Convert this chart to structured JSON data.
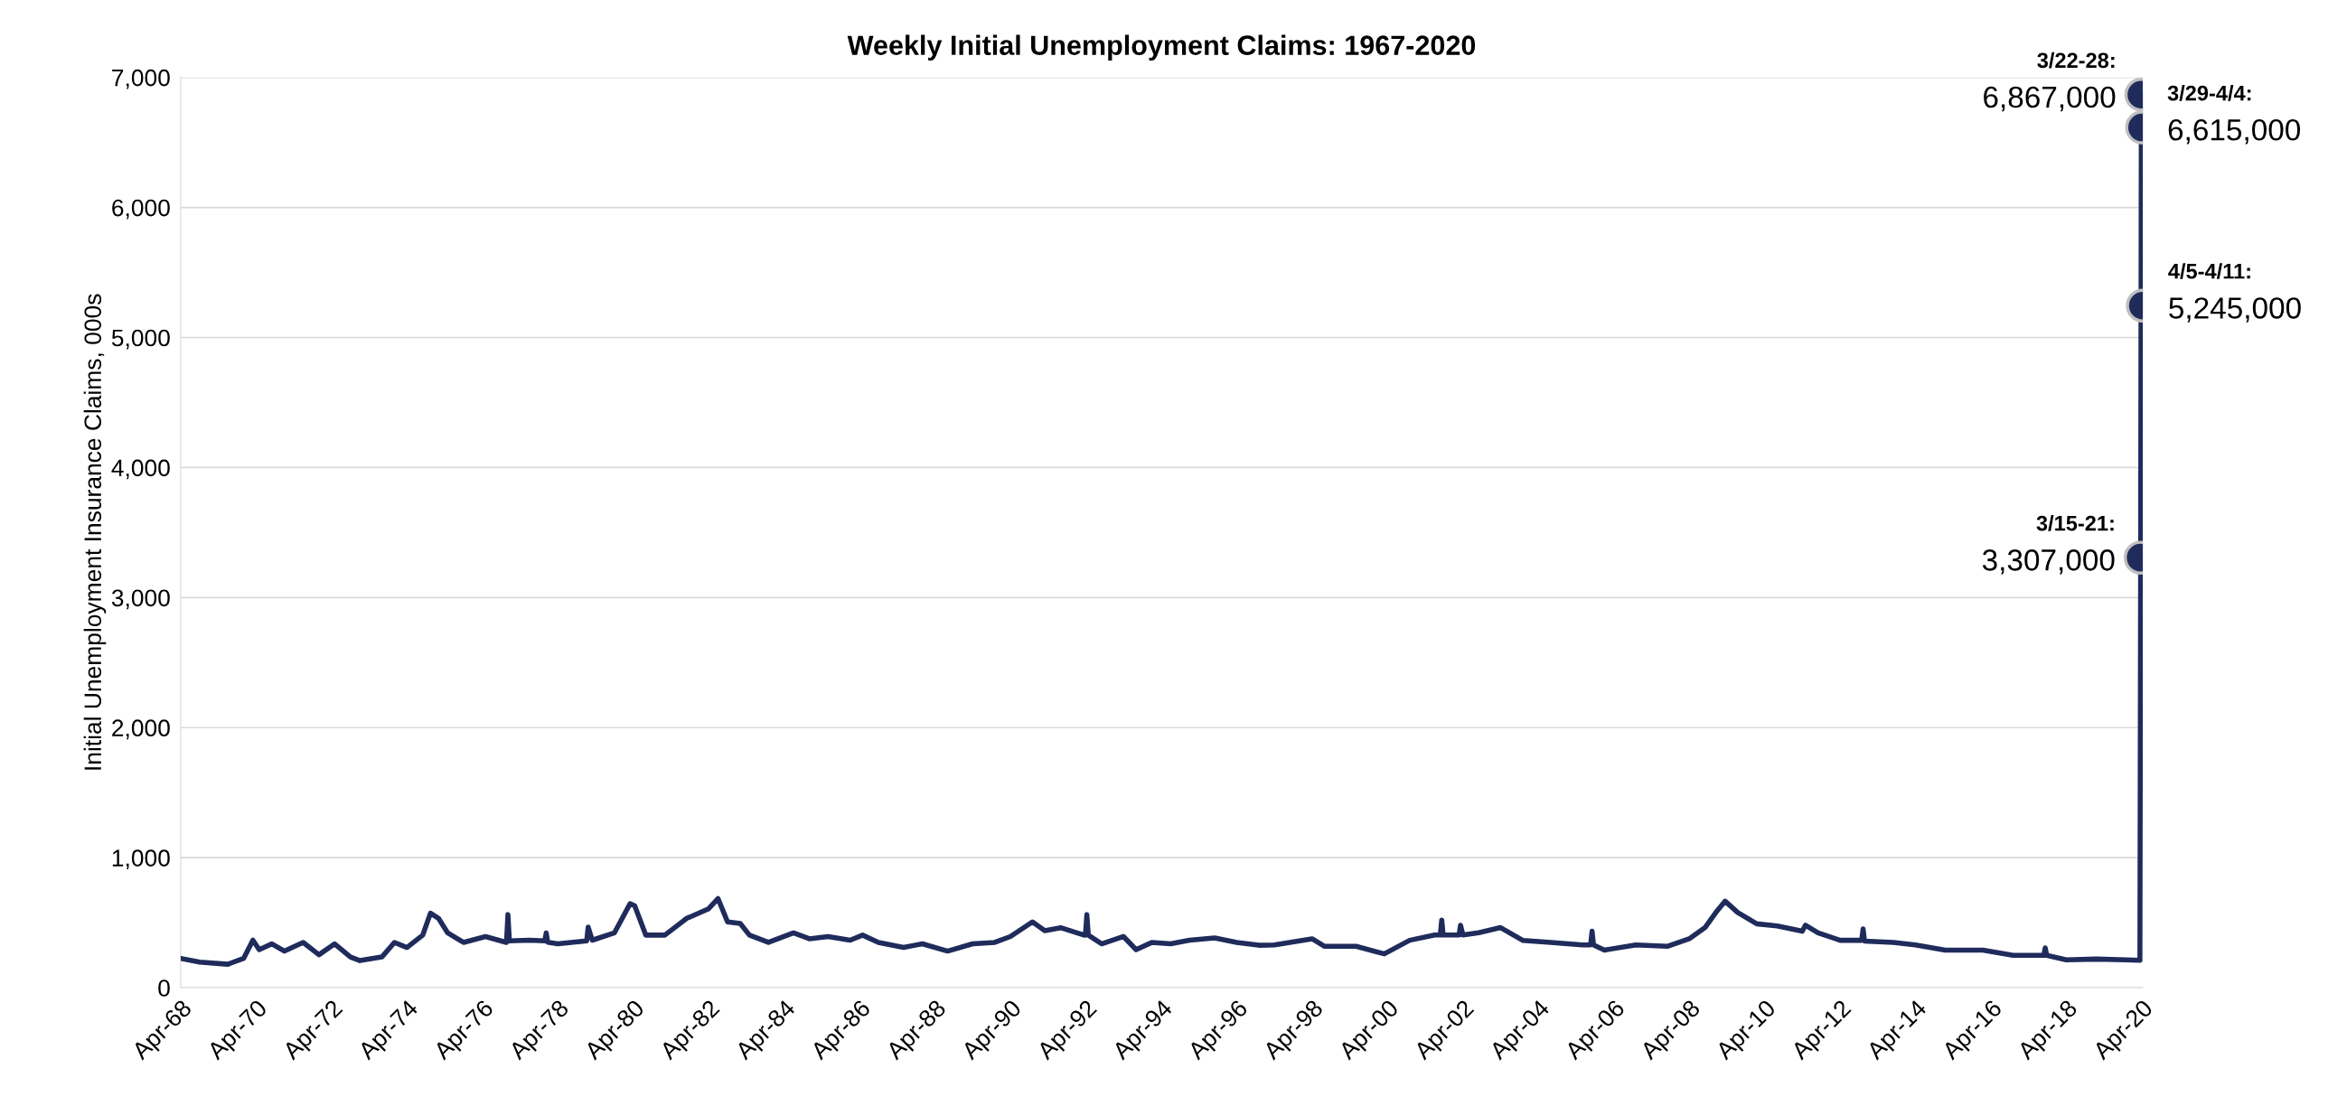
{
  "chart_data": {
    "type": "line",
    "title": "Weekly Initial Unemployment Claims: 1967-2020",
    "ylabel": "Initial Unemployment Insurance Claims, 000s",
    "ylim": [
      0,
      7000
    ],
    "yticks": [
      {
        "value": 0,
        "label": "0"
      },
      {
        "value": 1000,
        "label": "1,000"
      },
      {
        "value": 2000,
        "label": "2,000"
      },
      {
        "value": 3000,
        "label": "3,000"
      },
      {
        "value": 4000,
        "label": "4,000"
      },
      {
        "value": 5000,
        "label": "5,000"
      },
      {
        "value": 6000,
        "label": "6,000"
      },
      {
        "value": 7000,
        "label": "7,000"
      }
    ],
    "xlim": [
      "1968-04-01",
      "2020-04-11"
    ],
    "xticks": [
      {
        "value": "1968-04-01",
        "label": "Apr-68"
      },
      {
        "value": "1970-04-01",
        "label": "Apr-70"
      },
      {
        "value": "1972-04-01",
        "label": "Apr-72"
      },
      {
        "value": "1974-04-01",
        "label": "Apr-74"
      },
      {
        "value": "1976-04-01",
        "label": "Apr-76"
      },
      {
        "value": "1978-04-01",
        "label": "Apr-78"
      },
      {
        "value": "1980-04-01",
        "label": "Apr-80"
      },
      {
        "value": "1982-04-01",
        "label": "Apr-82"
      },
      {
        "value": "1984-04-01",
        "label": "Apr-84"
      },
      {
        "value": "1986-04-01",
        "label": "Apr-86"
      },
      {
        "value": "1988-04-01",
        "label": "Apr-88"
      },
      {
        "value": "1990-04-01",
        "label": "Apr-90"
      },
      {
        "value": "1992-04-01",
        "label": "Apr-92"
      },
      {
        "value": "1994-04-01",
        "label": "Apr-94"
      },
      {
        "value": "1996-04-01",
        "label": "Apr-96"
      },
      {
        "value": "1998-04-01",
        "label": "Apr-98"
      },
      {
        "value": "2000-04-01",
        "label": "Apr-00"
      },
      {
        "value": "2002-04-01",
        "label": "Apr-02"
      },
      {
        "value": "2004-04-01",
        "label": "Apr-04"
      },
      {
        "value": "2006-04-01",
        "label": "Apr-06"
      },
      {
        "value": "2008-04-01",
        "label": "Apr-08"
      },
      {
        "value": "2010-04-01",
        "label": "Apr-10"
      },
      {
        "value": "2012-04-01",
        "label": "Apr-12"
      },
      {
        "value": "2014-04-01",
        "label": "Apr-14"
      },
      {
        "value": "2016-04-01",
        "label": "Apr-16"
      },
      {
        "value": "2018-04-01",
        "label": "Apr-18"
      },
      {
        "value": "2020-04-01",
        "label": "Apr-20"
      }
    ],
    "grid": "y",
    "series": [
      {
        "color": "#1f2b5b",
        "x": [
          "1968-04-01",
          "1968-10-01",
          "1969-07-01",
          "1969-12-01",
          "1970-03-01",
          "1970-05-01",
          "1970-09-01",
          "1971-01-01",
          "1971-07-01",
          "1971-12-01",
          "1972-05-01",
          "1972-10-01",
          "1973-01-01",
          "1973-08-01",
          "1973-12-01",
          "1974-04-01",
          "1974-09-01",
          "1974-11-15",
          "1975-02-01",
          "1975-05-01",
          "1975-10-01",
          "1976-05-01",
          "1976-11-20",
          "1976-12-04",
          "1976-12-18",
          "1977-07-01",
          "1977-11-26",
          "1977-12-10",
          "1977-12-24",
          "1978-04-01",
          "1979-01-06",
          "1979-01-20",
          "1979-03-01",
          "1979-10-01",
          "1980-03-01",
          "1980-04-15",
          "1980-08-01",
          "1981-02-01",
          "1981-09-01",
          "1982-04-01",
          "1982-07-01",
          "1982-10-01",
          "1983-02-01",
          "1983-05-01",
          "1983-11-01",
          "1984-07-01",
          "1984-12-01",
          "1985-06-01",
          "1986-01-01",
          "1986-05-01",
          "1986-10-01",
          "1987-06-01",
          "1987-12-01",
          "1988-08-01",
          "1989-04-01",
          "1989-11-01",
          "1990-04-01",
          "1990-11-01",
          "1991-03-01",
          "1991-08-01",
          "1992-03-15",
          "1992-03-28",
          "1992-04-11",
          "1992-04-25",
          "1992-09-01",
          "1993-04-01",
          "1993-08-01",
          "1994-01-01",
          "1994-07-01",
          "1995-01-01",
          "1995-09-01",
          "1996-04-01",
          "1996-11-01",
          "1997-04-01",
          "1998-04-01",
          "1998-08-01",
          "1999-06-01",
          "2000-03-01",
          "2000-11-01",
          "2001-07-01",
          "2001-08-25",
          "2001-09-08",
          "2001-09-22",
          "2002-02-23",
          "2002-03-09",
          "2002-04-01",
          "2002-09-01",
          "2003-04-01",
          "2003-11-01",
          "2004-08-01",
          "2005-06-01",
          "2005-08-20",
          "2005-09-03",
          "2005-09-17",
          "2006-01-01",
          "2006-11-01",
          "2007-09-01",
          "2008-04-01",
          "2008-09-01",
          "2008-12-15",
          "2009-03-15",
          "2009-07-15",
          "2010-01-15",
          "2010-08-01",
          "2011-04-01",
          "2011-05-01",
          "2011-09-01",
          "2012-04-01",
          "2012-10-27",
          "2012-11-10",
          "2012-11-24",
          "2013-09-01",
          "2014-04-01",
          "2015-01-15",
          "2016-01-15",
          "2016-11-01",
          "2017-08-26",
          "2017-09-09",
          "2017-09-23",
          "2018-04-01",
          "2019-01-15",
          "2019-11-01",
          "2020-03-14",
          "2020-03-21",
          "2020-03-28",
          "2020-04-04",
          "2020-04-11"
        ],
        "values": [
          225,
          197,
          180,
          225,
          365,
          292,
          337,
          281,
          348,
          253,
          337,
          236,
          208,
          236,
          348,
          309,
          404,
          573,
          533,
          421,
          348,
          393,
          348,
          562,
          360,
          365,
          360,
          421,
          350,
          337,
          360,
          466,
          365,
          421,
          646,
          629,
          404,
          404,
          533,
          607,
          685,
          506,
          494,
          404,
          348,
          421,
          376,
          393,
          365,
          404,
          348,
          309,
          337,
          281,
          337,
          348,
          393,
          506,
          438,
          461,
          404,
          404,
          562,
          404,
          337,
          393,
          292,
          348,
          337,
          365,
          382,
          348,
          326,
          329,
          376,
          318,
          318,
          260,
          364,
          405,
          405,
          520,
          405,
          405,
          480,
          405,
          422,
          462,
          364,
          347,
          329,
          329,
          434,
          329,
          289,
          329,
          318,
          376,
          462,
          578,
          665,
          578,
          491,
          474,
          434,
          480,
          422,
          364,
          364,
          451,
          358,
          347,
          329,
          289,
          289,
          249,
          249,
          306,
          249,
          214,
          220,
          214,
          211,
          3307,
          6867,
          6615,
          5245
        ]
      },
      {
        "type": "scatter",
        "marker": "circle",
        "color": "#1f2b5b",
        "x": [
          "2020-03-21",
          "2020-03-28",
          "2020-04-04",
          "2020-04-11"
        ],
        "values": [
          3307,
          6867,
          6615,
          5245
        ]
      }
    ],
    "annotations": [
      {
        "text": "3/15-21:",
        "x": "2020-03-21",
        "y": 3307
      },
      {
        "text": "3,307,000",
        "x": "2020-03-21",
        "y": 3307
      },
      {
        "text": "3/22-28:",
        "x": "2020-03-28",
        "y": 6867
      },
      {
        "text": "6,867,000",
        "x": "2020-03-28",
        "y": 6867
      },
      {
        "text": "3/29-4/4:",
        "x": "2020-04-04",
        "y": 6615
      },
      {
        "text": "6,615,000",
        "x": "2020-04-04",
        "y": 6615
      },
      {
        "text": "4/5-4/11:",
        "x": "2020-04-11",
        "y": 5245
      },
      {
        "text": "5,245,000",
        "x": "2020-04-11",
        "y": 5245
      }
    ]
  }
}
